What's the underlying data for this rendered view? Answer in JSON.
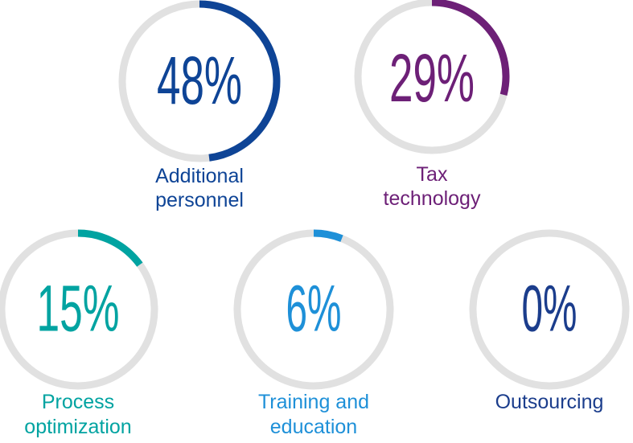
{
  "chart_data": {
    "type": "radial-progress",
    "track_color": "#e1e1e1",
    "items": [
      {
        "label_lines": [
          "Additional",
          "personnel"
        ],
        "value": 48,
        "display": "48%",
        "color": "#0e4496"
      },
      {
        "label_lines": [
          "Tax",
          "technology"
        ],
        "value": 29,
        "display": "29%",
        "color": "#6d2077"
      },
      {
        "label_lines": [
          "Process",
          "optimization"
        ],
        "value": 15,
        "display": "15%",
        "color": "#00a3a1"
      },
      {
        "label_lines": [
          "Training and",
          "education"
        ],
        "value": 6,
        "display": "6%",
        "color": "#1e90d8"
      },
      {
        "label_lines": [
          "Outsourcing"
        ],
        "value": 0,
        "display": "0%",
        "color": "#1b3d8c"
      }
    ]
  }
}
